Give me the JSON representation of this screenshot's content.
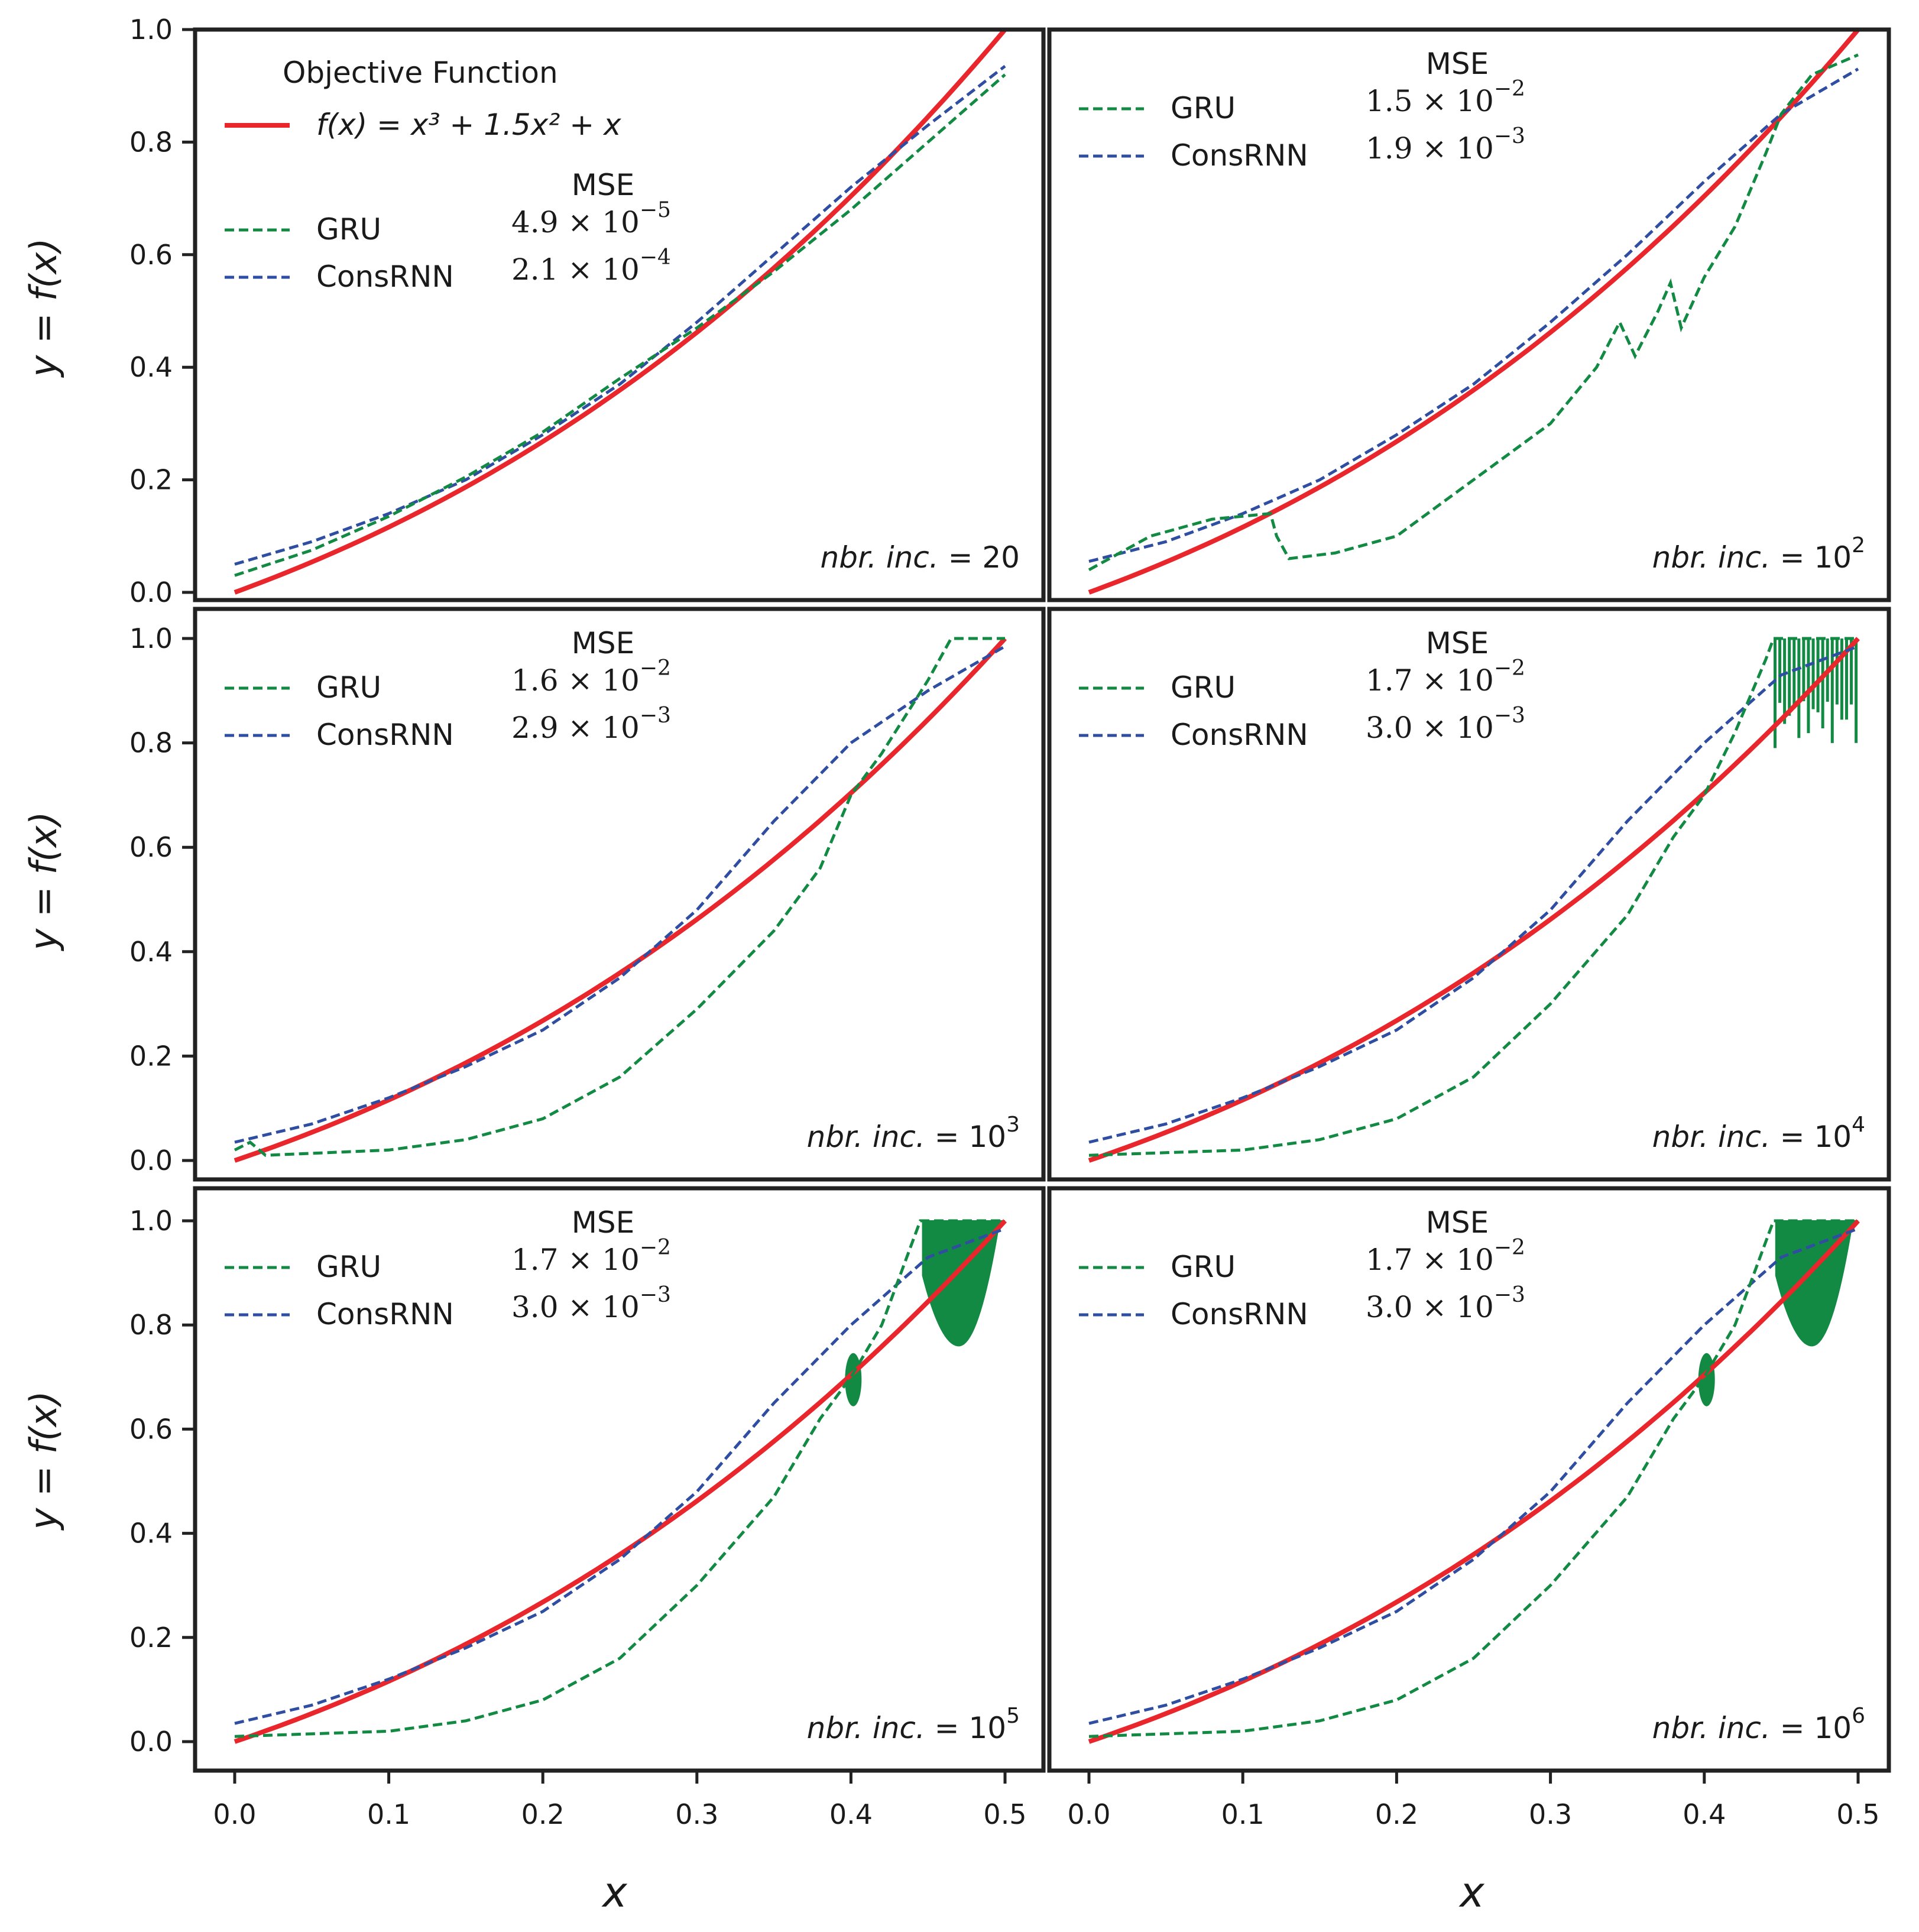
{
  "colors": {
    "objective": "#e8262b",
    "gru": "#138a43",
    "consrnn": "#2f4ea2",
    "frame": "#222222"
  },
  "figure": {
    "ylabel": "y = f(x)",
    "xlabel": "x"
  },
  "legend_main": {
    "title": "Objective Function",
    "objective_label": "f(x) = x³ + 1.5x² + x"
  },
  "chart_data": [
    {
      "type": "line",
      "panel": 1,
      "title": "nbr. inc. = 20",
      "nbr_prefix": "nbr. inc. = ",
      "nbr_base": "20",
      "nbr_exp": "",
      "mse_header": "MSE",
      "gru_label": "GRU",
      "consrnn_label": "ConsRNN",
      "gru_mse": {
        "mant": "4.9 × 10",
        "exp": "−5"
      },
      "consrnn_mse": {
        "mant": "2.1 × 10",
        "exp": "−4"
      },
      "xlim": [
        -0.025,
        0.525
      ],
      "ylim": [
        -0.01,
        1.0
      ],
      "xticks": [
        "0.0",
        "0.1",
        "0.2",
        "0.3",
        "0.4",
        "0.5"
      ],
      "yticks": [
        "0.0",
        "0.2",
        "0.4",
        "0.6",
        "0.8",
        "1.0"
      ],
      "gru_knots": [
        [
          0.0,
          0.03
        ],
        [
          0.05,
          0.075
        ],
        [
          0.1,
          0.135
        ],
        [
          0.15,
          0.205
        ],
        [
          0.2,
          0.285
        ],
        [
          0.25,
          0.38
        ],
        [
          0.3,
          0.47
        ],
        [
          0.35,
          0.57
        ],
        [
          0.4,
          0.68
        ],
        [
          0.45,
          0.8
        ],
        [
          0.5,
          0.92
        ]
      ],
      "cons_knots": [
        [
          0.0,
          0.05
        ],
        [
          0.05,
          0.09
        ],
        [
          0.1,
          0.14
        ],
        [
          0.15,
          0.2
        ],
        [
          0.2,
          0.28
        ],
        [
          0.25,
          0.37
        ],
        [
          0.3,
          0.48
        ],
        [
          0.35,
          0.6
        ],
        [
          0.4,
          0.72
        ],
        [
          0.45,
          0.83
        ],
        [
          0.5,
          0.935
        ]
      ]
    },
    {
      "type": "line",
      "panel": 2,
      "title": "nbr. inc. = 10^2",
      "nbr_prefix": "nbr. inc. = ",
      "nbr_base": "10",
      "nbr_exp": "2",
      "mse_header": "MSE",
      "gru_label": "GRU",
      "consrnn_label": "ConsRNN",
      "gru_mse": {
        "mant": "1.5 × 10",
        "exp": "−2"
      },
      "consrnn_mse": {
        "mant": "1.9 × 10",
        "exp": "−3"
      },
      "xlim": [
        -0.025,
        0.525
      ],
      "ylim": [
        -0.01,
        1.0
      ],
      "xticks": [
        "0.0",
        "0.1",
        "0.2",
        "0.3",
        "0.4",
        "0.5"
      ],
      "yticks": [
        "0.0",
        "0.2",
        "0.4",
        "0.6",
        "0.8",
        "1.0"
      ],
      "gru_knots": [
        [
          0.0,
          0.04
        ],
        [
          0.04,
          0.1
        ],
        [
          0.08,
          0.13
        ],
        [
          0.118,
          0.14
        ],
        [
          0.122,
          0.1
        ],
        [
          0.13,
          0.06
        ],
        [
          0.16,
          0.07
        ],
        [
          0.2,
          0.1
        ],
        [
          0.25,
          0.2
        ],
        [
          0.3,
          0.3
        ],
        [
          0.33,
          0.4
        ],
        [
          0.345,
          0.48
        ],
        [
          0.355,
          0.42
        ],
        [
          0.37,
          0.5
        ],
        [
          0.378,
          0.55
        ],
        [
          0.385,
          0.47
        ],
        [
          0.4,
          0.56
        ],
        [
          0.42,
          0.65
        ],
        [
          0.44,
          0.78
        ],
        [
          0.45,
          0.85
        ],
        [
          0.47,
          0.92
        ],
        [
          0.5,
          0.955
        ]
      ],
      "cons_knots": [
        [
          0.0,
          0.055
        ],
        [
          0.05,
          0.09
        ],
        [
          0.1,
          0.14
        ],
        [
          0.15,
          0.2
        ],
        [
          0.2,
          0.28
        ],
        [
          0.25,
          0.37
        ],
        [
          0.3,
          0.48
        ],
        [
          0.35,
          0.6
        ],
        [
          0.4,
          0.73
        ],
        [
          0.45,
          0.85
        ],
        [
          0.5,
          0.93
        ]
      ]
    },
    {
      "type": "line",
      "panel": 3,
      "title": "nbr. inc. = 10^3",
      "nbr_prefix": "nbr. inc. = ",
      "nbr_base": "10",
      "nbr_exp": "3",
      "mse_header": "MSE",
      "gru_label": "GRU",
      "consrnn_label": "ConsRNN",
      "gru_mse": {
        "mant": "1.6 × 10",
        "exp": "−2"
      },
      "consrnn_mse": {
        "mant": "2.9 × 10",
        "exp": "−3"
      },
      "xlim": [
        -0.025,
        0.525
      ],
      "ylim": [
        -0.01,
        1.0
      ],
      "xticks": [
        "0.0",
        "0.1",
        "0.2",
        "0.3",
        "0.4",
        "0.5"
      ],
      "yticks": [
        "0.0",
        "0.2",
        "0.4",
        "0.6",
        "0.8",
        "1.0"
      ],
      "gru_knots": [
        [
          0.0,
          0.02
        ],
        [
          0.01,
          0.035
        ],
        [
          0.02,
          0.01
        ],
        [
          0.1,
          0.02
        ],
        [
          0.15,
          0.04
        ],
        [
          0.2,
          0.08
        ],
        [
          0.25,
          0.16
        ],
        [
          0.3,
          0.29
        ],
        [
          0.35,
          0.44
        ],
        [
          0.38,
          0.56
        ],
        [
          0.4,
          0.7
        ],
        [
          0.42,
          0.78
        ],
        [
          0.45,
          0.92
        ],
        [
          0.465,
          1.0
        ],
        [
          0.5,
          1.0
        ]
      ],
      "cons_knots": [
        [
          0.0,
          0.035
        ],
        [
          0.05,
          0.07
        ],
        [
          0.1,
          0.12
        ],
        [
          0.15,
          0.18
        ],
        [
          0.2,
          0.25
        ],
        [
          0.25,
          0.35
        ],
        [
          0.3,
          0.48
        ],
        [
          0.35,
          0.65
        ],
        [
          0.4,
          0.8
        ],
        [
          0.45,
          0.9
        ],
        [
          0.5,
          0.985
        ]
      ]
    },
    {
      "type": "line",
      "panel": 4,
      "title": "nbr. inc. = 10^4",
      "nbr_prefix": "nbr. inc. = ",
      "nbr_base": "10",
      "nbr_exp": "4",
      "mse_header": "MSE",
      "gru_label": "GRU",
      "consrnn_label": "ConsRNN",
      "gru_mse": {
        "mant": "1.7 × 10",
        "exp": "−2"
      },
      "consrnn_mse": {
        "mant": "3.0 × 10",
        "exp": "−3"
      },
      "xlim": [
        -0.025,
        0.525
      ],
      "ylim": [
        -0.01,
        1.0
      ],
      "xticks": [
        "0.0",
        "0.1",
        "0.2",
        "0.3",
        "0.4",
        "0.5"
      ],
      "yticks": [
        "0.0",
        "0.2",
        "0.4",
        "0.6",
        "0.8",
        "1.0"
      ],
      "gru_knots": [
        [
          0.0,
          0.01
        ],
        [
          0.1,
          0.02
        ],
        [
          0.15,
          0.04
        ],
        [
          0.2,
          0.08
        ],
        [
          0.25,
          0.16
        ],
        [
          0.3,
          0.3
        ],
        [
          0.35,
          0.47
        ],
        [
          0.38,
          0.62
        ],
        [
          0.4,
          0.7
        ],
        [
          0.42,
          0.82
        ],
        [
          0.44,
          0.96
        ],
        [
          0.445,
          1.0
        ],
        [
          0.5,
          1.0
        ]
      ],
      "cons_knots": [
        [
          0.0,
          0.035
        ],
        [
          0.05,
          0.07
        ],
        [
          0.1,
          0.12
        ],
        [
          0.15,
          0.18
        ],
        [
          0.2,
          0.25
        ],
        [
          0.25,
          0.35
        ],
        [
          0.3,
          0.48
        ],
        [
          0.35,
          0.65
        ],
        [
          0.4,
          0.8
        ],
        [
          0.45,
          0.93
        ],
        [
          0.5,
          0.985
        ]
      ]
    },
    {
      "type": "line",
      "panel": 5,
      "title": "nbr. inc. = 10^5",
      "nbr_prefix": "nbr. inc. = ",
      "nbr_base": "10",
      "nbr_exp": "5",
      "mse_header": "MSE",
      "gru_label": "GRU",
      "consrnn_label": "ConsRNN",
      "gru_mse": {
        "mant": "1.7 × 10",
        "exp": "−2"
      },
      "consrnn_mse": {
        "mant": "3.0 × 10",
        "exp": "−3"
      },
      "xlim": [
        -0.025,
        0.525
      ],
      "ylim": [
        -0.01,
        1.0
      ],
      "xticks": [
        "0.0",
        "0.1",
        "0.2",
        "0.3",
        "0.4",
        "0.5"
      ],
      "yticks": [
        "0.0",
        "0.2",
        "0.4",
        "0.6",
        "0.8",
        "1.0"
      ],
      "gru_knots": [
        [
          0.0,
          0.01
        ],
        [
          0.1,
          0.02
        ],
        [
          0.15,
          0.04
        ],
        [
          0.2,
          0.08
        ],
        [
          0.25,
          0.16
        ],
        [
          0.3,
          0.3
        ],
        [
          0.35,
          0.47
        ],
        [
          0.38,
          0.62
        ],
        [
          0.4,
          0.7
        ],
        [
          0.42,
          0.8
        ],
        [
          0.44,
          0.96
        ],
        [
          0.445,
          1.0
        ],
        [
          0.5,
          1.0
        ]
      ],
      "cons_knots": [
        [
          0.0,
          0.035
        ],
        [
          0.05,
          0.07
        ],
        [
          0.1,
          0.12
        ],
        [
          0.15,
          0.18
        ],
        [
          0.2,
          0.25
        ],
        [
          0.25,
          0.35
        ],
        [
          0.3,
          0.48
        ],
        [
          0.35,
          0.65
        ],
        [
          0.4,
          0.8
        ],
        [
          0.45,
          0.93
        ],
        [
          0.5,
          0.985
        ]
      ]
    },
    {
      "type": "line",
      "panel": 6,
      "title": "nbr. inc. = 10^6",
      "nbr_prefix": "nbr. inc. = ",
      "nbr_base": "10",
      "nbr_exp": "6",
      "mse_header": "MSE",
      "gru_label": "GRU",
      "consrnn_label": "ConsRNN",
      "gru_mse": {
        "mant": "1.7 × 10",
        "exp": "−2"
      },
      "consrnn_mse": {
        "mant": "3.0 × 10",
        "exp": "−3"
      },
      "xlim": [
        -0.025,
        0.525
      ],
      "ylim": [
        -0.01,
        1.0
      ],
      "xticks": [
        "0.0",
        "0.1",
        "0.2",
        "0.3",
        "0.4",
        "0.5"
      ],
      "yticks": [
        "0.0",
        "0.2",
        "0.4",
        "0.6",
        "0.8",
        "1.0"
      ],
      "gru_knots": [
        [
          0.0,
          0.01
        ],
        [
          0.1,
          0.02
        ],
        [
          0.15,
          0.04
        ],
        [
          0.2,
          0.08
        ],
        [
          0.25,
          0.16
        ],
        [
          0.3,
          0.3
        ],
        [
          0.35,
          0.47
        ],
        [
          0.38,
          0.62
        ],
        [
          0.4,
          0.7
        ],
        [
          0.42,
          0.8
        ],
        [
          0.44,
          0.96
        ],
        [
          0.445,
          1.0
        ],
        [
          0.5,
          1.0
        ]
      ],
      "cons_knots": [
        [
          0.0,
          0.035
        ],
        [
          0.05,
          0.07
        ],
        [
          0.1,
          0.12
        ],
        [
          0.15,
          0.18
        ],
        [
          0.2,
          0.25
        ],
        [
          0.25,
          0.35
        ],
        [
          0.3,
          0.48
        ],
        [
          0.35,
          0.65
        ],
        [
          0.4,
          0.8
        ],
        [
          0.45,
          0.93
        ],
        [
          0.5,
          0.985
        ]
      ]
    }
  ]
}
